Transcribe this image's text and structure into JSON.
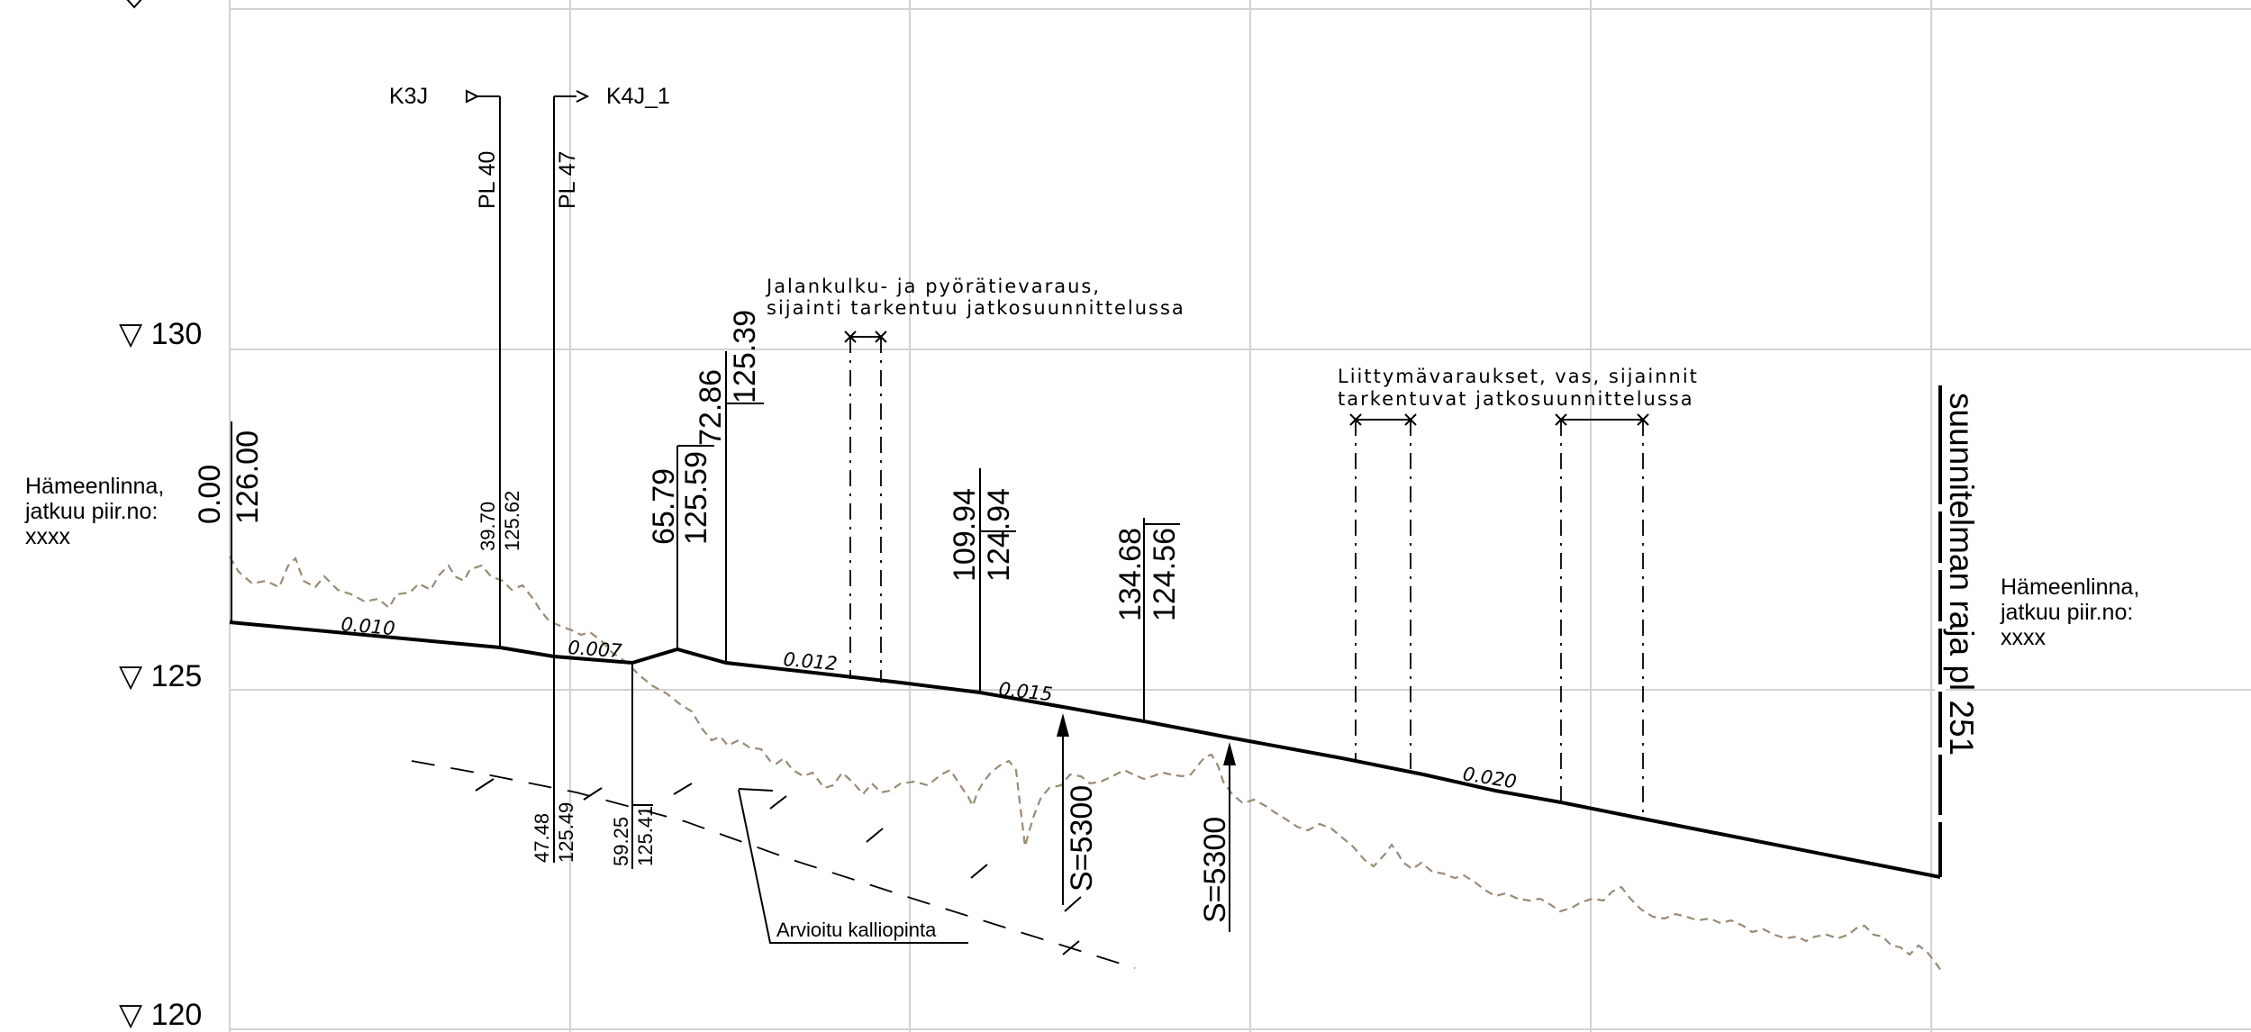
{
  "elevation_labels": {
    "e130": "▽ 130",
    "e125": "▽ 125",
    "e120": "▽ 120"
  },
  "side_notes": {
    "left": [
      "Hämeenlinna,",
      " jatkuu piir.no:",
      "xxxx"
    ],
    "right": [
      "Hämeenlinna,",
      " jatkuu piir.no:",
      "xxxx"
    ]
  },
  "crossing_roads": {
    "k3j": "K3J",
    "k4j": "K4J_1",
    "pl40": "PL 40",
    "pl47": "PL 47"
  },
  "stations": {
    "s0_station": "0.00",
    "s0_elev": "126.00",
    "s1_station": "39.70",
    "s1_elev": "125.62",
    "s2_station": "47.48",
    "s2_elev": "125.49",
    "s3_station": "59.25",
    "s3_elev": "125.41",
    "s4_station": "65.79",
    "s4_elev": "125.59",
    "s5_station": "72.86",
    "s5_elev": "125.39",
    "s6_station": "109.94",
    "s6_elev": "124.94",
    "s7_station": "134.68",
    "s7_elev": "124.56"
  },
  "slopes": {
    "g1": "0.010",
    "g2": "0.007",
    "g3": "0.012",
    "g4": "0.015",
    "g5": "0.020"
  },
  "curves": {
    "c1": "S=5300",
    "c2": "S=5300"
  },
  "notes": {
    "walkway_line1": "Jalankulku- ja pyörätievaraus,",
    "walkway_line2": "sijainti tarkentuu jatkosuunnittelussa",
    "junction_line1": "Liittymävaraukset, vas, sijainnit",
    "junction_line2": "tarkentuvat jatkosuunnittelussa",
    "bedrock": "Arvioitu kalliopinta"
  },
  "plan_boundary": "suunnitelman raja pl 251"
}
